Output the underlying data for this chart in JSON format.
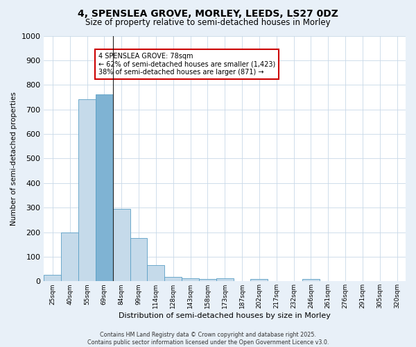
{
  "title_line1": "4, SPENSLEA GROVE, MORLEY, LEEDS, LS27 0DZ",
  "title_line2": "Size of property relative to semi-detached houses in Morley",
  "xlabel": "Distribution of semi-detached houses by size in Morley",
  "ylabel": "Number of semi-detached properties",
  "categories": [
    "25sqm",
    "40sqm",
    "55sqm",
    "69sqm",
    "84sqm",
    "99sqm",
    "114sqm",
    "128sqm",
    "143sqm",
    "158sqm",
    "173sqm",
    "187sqm",
    "202sqm",
    "217sqm",
    "232sqm",
    "246sqm",
    "261sqm",
    "276sqm",
    "291sqm",
    "305sqm",
    "320sqm"
  ],
  "values": [
    27,
    200,
    740,
    760,
    295,
    175,
    65,
    18,
    12,
    10,
    12,
    0,
    8,
    0,
    0,
    8,
    0,
    0,
    0,
    0,
    0
  ],
  "highlight_index": 3,
  "bar_color_normal": "#c5daea",
  "bar_color_highlight": "#7fb3d3",
  "bar_edge_color": "#5a9fc5",
  "annotation_text": "4 SPENSLEA GROVE: 78sqm\n← 62% of semi-detached houses are smaller (1,423)\n38% of semi-detached houses are larger (871) →",
  "annotation_box_color": "#ffffff",
  "annotation_box_edge": "#cc0000",
  "ylim": [
    0,
    1000
  ],
  "yticks": [
    0,
    100,
    200,
    300,
    400,
    500,
    600,
    700,
    800,
    900,
    1000
  ],
  "grid_color": "#c8d8e8",
  "plot_bg_color": "#ffffff",
  "fig_bg_color": "#e8f0f8",
  "footer_line1": "Contains HM Land Registry data © Crown copyright and database right 2025.",
  "footer_line2": "Contains public sector information licensed under the Open Government Licence v3.0.",
  "vertical_line_index": 3,
  "title1_fontsize": 10,
  "title2_fontsize": 8.5,
  "annotation_fontsize": 7,
  "xlabel_fontsize": 8,
  "ylabel_fontsize": 7.5,
  "xtick_fontsize": 6.5,
  "ytick_fontsize": 8
}
